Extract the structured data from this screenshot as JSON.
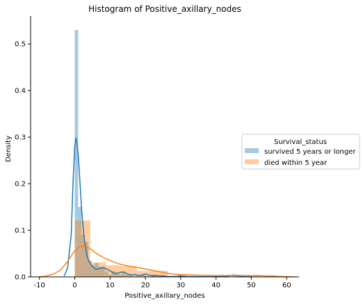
{
  "chart_data": {
    "type": "histogram-kde",
    "title": "Histogram of Positive_axillary_nodes",
    "xlabel": "Positive_axillary_nodes",
    "ylabel": "Density",
    "xlim": [
      -12.5,
      63.5
    ],
    "ylim": [
      0,
      0.56
    ],
    "x_ticks": [
      -10,
      0,
      10,
      20,
      30,
      40,
      50,
      60
    ],
    "y_ticks": [
      0.0,
      0.1,
      0.2,
      0.3,
      0.4,
      0.5
    ],
    "y_tick_labels": [
      "0.0",
      "0.1",
      "0.2",
      "0.3",
      "0.4",
      "0.5"
    ],
    "legend": {
      "title": "Survival_status",
      "placement": "center-right"
    },
    "series": [
      {
        "name": "survived 5 years or longer",
        "color": "#1f77b4",
        "hist_alpha": 0.4,
        "bins": [
          {
            "x0": 0.0,
            "x1": 0.95,
            "density": 0.53
          },
          {
            "x0": 0.95,
            "x1": 1.9,
            "density": 0.15
          },
          {
            "x0": 1.9,
            "x1": 2.85,
            "density": 0.09
          },
          {
            "x0": 2.85,
            "x1": 3.8,
            "density": 0.075
          },
          {
            "x0": 3.8,
            "x1": 4.75,
            "density": 0.035
          },
          {
            "x0": 4.75,
            "x1": 5.7,
            "density": 0.025
          },
          {
            "x0": 5.7,
            "x1": 6.65,
            "density": 0.03
          },
          {
            "x0": 6.65,
            "x1": 7.6,
            "density": 0.022
          },
          {
            "x0": 7.6,
            "x1": 8.55,
            "density": 0.022
          },
          {
            "x0": 8.55,
            "x1": 9.5,
            "density": 0.012
          },
          {
            "x0": 9.5,
            "x1": 10.45,
            "density": 0.005
          },
          {
            "x0": 10.45,
            "x1": 11.4,
            "density": 0.012
          },
          {
            "x0": 11.4,
            "x1": 12.35,
            "density": 0.01
          },
          {
            "x0": 12.35,
            "x1": 13.3,
            "density": 0.005
          },
          {
            "x0": 13.3,
            "x1": 14.25,
            "density": 0.012
          },
          {
            "x0": 14.25,
            "x1": 15.2,
            "density": 0.005
          },
          {
            "x0": 15.2,
            "x1": 16.15,
            "density": 0.005
          },
          {
            "x0": 19.0,
            "x1": 19.95,
            "density": 0.005
          },
          {
            "x0": 21.85,
            "x1": 22.8,
            "density": 0.005
          },
          {
            "x0": 29.45,
            "x1": 30.4,
            "density": 0.005
          },
          {
            "x0": 44.65,
            "x1": 45.6,
            "density": 0.005
          },
          {
            "x0": 45.6,
            "x1": 46.55,
            "density": 0.005
          }
        ],
        "kde": {
          "x": [
            -3,
            -2,
            -1,
            -0.5,
            0,
            0.3,
            0.6,
            1,
            1.5,
            2,
            2.5,
            3,
            3.5,
            4,
            5,
            6,
            7,
            8,
            9,
            10,
            11,
            12,
            13,
            14,
            15,
            16,
            17,
            18,
            19,
            20,
            21,
            22,
            23,
            24,
            25,
            26,
            28,
            30,
            32,
            36,
            40,
            43,
            44,
            45,
            46,
            47,
            48,
            50
          ],
          "y": [
            0.002,
            0.02,
            0.09,
            0.2,
            0.28,
            0.298,
            0.29,
            0.26,
            0.2,
            0.14,
            0.095,
            0.065,
            0.045,
            0.033,
            0.022,
            0.016,
            0.018,
            0.02,
            0.017,
            0.013,
            0.008,
            0.007,
            0.01,
            0.01,
            0.006,
            0.004,
            0.005,
            0.003,
            0.004,
            0.006,
            0.004,
            0.002,
            0.003,
            0.002,
            0.002,
            0.001,
            0.001,
            0.002,
            0.001,
            0.0005,
            0.0005,
            0.001,
            0.003,
            0.004,
            0.003,
            0.001,
            0.0005,
            0.0
          ]
        }
      },
      {
        "name": "died within 5 year",
        "color": "#ff7f0e",
        "hist_alpha": 0.4,
        "bins": [
          {
            "x0": 0.0,
            "x1": 4.4,
            "density": 0.121
          },
          {
            "x0": 4.4,
            "x1": 8.8,
            "density": 0.031
          },
          {
            "x0": 8.8,
            "x1": 13.2,
            "density": 0.025
          },
          {
            "x0": 13.2,
            "x1": 17.6,
            "density": 0.023
          },
          {
            "x0": 17.6,
            "x1": 22.0,
            "density": 0.013
          },
          {
            "x0": 22.0,
            "x1": 26.4,
            "density": 0.013
          },
          {
            "x0": 26.4,
            "x1": 30.8,
            "density": 0.002
          },
          {
            "x0": 30.8,
            "x1": 35.2,
            "density": 0.001
          },
          {
            "x0": 48.4,
            "x1": 52.8,
            "density": 0.002
          }
        ],
        "kde": {
          "x": [
            -10,
            -8,
            -6,
            -4,
            -2,
            -1,
            0,
            1,
            2,
            3,
            4,
            5,
            6,
            8,
            10,
            12,
            14,
            16,
            18,
            20,
            22,
            24,
            26,
            28,
            30,
            34,
            38,
            42,
            46,
            50,
            52,
            54,
            56,
            58,
            60,
            62
          ],
          "y": [
            0.0,
            0.002,
            0.006,
            0.015,
            0.033,
            0.045,
            0.056,
            0.063,
            0.066,
            0.065,
            0.062,
            0.057,
            0.051,
            0.042,
            0.035,
            0.029,
            0.025,
            0.022,
            0.02,
            0.017,
            0.014,
            0.011,
            0.008,
            0.006,
            0.005,
            0.004,
            0.003,
            0.003,
            0.003,
            0.003,
            0.003,
            0.002,
            0.002,
            0.001,
            0.0005,
            0.0
          ]
        }
      }
    ]
  }
}
